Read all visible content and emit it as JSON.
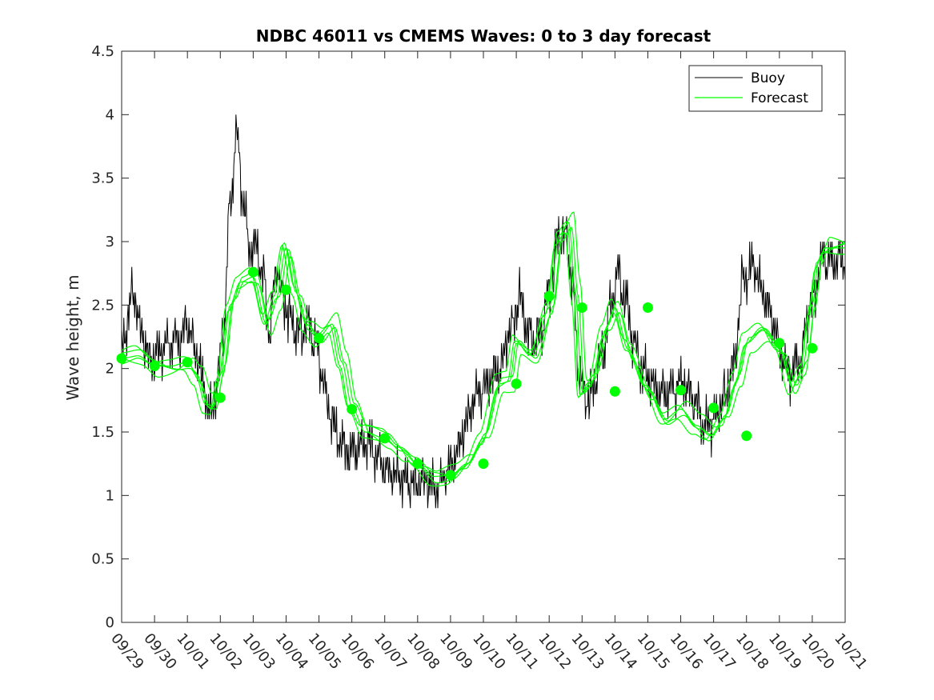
{
  "chart_data": {
    "type": "line",
    "title": "NDBC 46011 vs CMEMS Waves: 0 to 3 day forecast",
    "xlabel": "",
    "ylabel": "Wave height, m",
    "xlim": [
      0,
      22
    ],
    "ylim": [
      0,
      4.5
    ],
    "yticks": [
      0,
      0.5,
      1,
      1.5,
      2,
      2.5,
      3,
      3.5,
      4,
      4.5
    ],
    "ytick_labels": [
      "0",
      "0.5",
      "1",
      "1.5",
      "2",
      "2.5",
      "3",
      "3.5",
      "4",
      "4.5"
    ],
    "xtick_labels": [
      "09/29",
      "09/30",
      "10/01",
      "10/02",
      "10/03",
      "10/04",
      "10/05",
      "10/06",
      "10/07",
      "10/08",
      "10/09",
      "10/10",
      "10/11",
      "10/12",
      "10/13",
      "10/14",
      "10/15",
      "10/16",
      "10/17",
      "10/18",
      "10/19",
      "10/20",
      "10/21"
    ],
    "grid": false,
    "legend_position": "top-right",
    "colors": {
      "buoy": "#000000",
      "forecast": "#00ff00",
      "axis": "#262626"
    },
    "buoy_series": {
      "name": "Buoy",
      "anchors": [
        [
          0,
          2.1
        ],
        [
          0.15,
          2.35
        ],
        [
          0.35,
          2.6
        ],
        [
          0.6,
          2.3
        ],
        [
          0.9,
          2.05
        ],
        [
          1.2,
          2.15
        ],
        [
          1.5,
          2.2
        ],
        [
          1.8,
          2.25
        ],
        [
          2.0,
          2.35
        ],
        [
          2.3,
          2.1
        ],
        [
          2.5,
          1.85
        ],
        [
          2.7,
          1.65
        ],
        [
          2.9,
          1.85
        ],
        [
          3.1,
          2.3
        ],
        [
          3.3,
          3.3
        ],
        [
          3.5,
          3.85
        ],
        [
          3.7,
          3.3
        ],
        [
          3.9,
          2.95
        ],
        [
          4.1,
          2.95
        ],
        [
          4.3,
          2.7
        ],
        [
          4.5,
          2.3
        ],
        [
          4.7,
          2.8
        ],
        [
          4.9,
          2.55
        ],
        [
          5.1,
          2.4
        ],
        [
          5.3,
          2.3
        ],
        [
          5.5,
          2.3
        ],
        [
          5.7,
          2.35
        ],
        [
          5.9,
          2.2
        ],
        [
          6.1,
          1.95
        ],
        [
          6.3,
          1.65
        ],
        [
          6.6,
          1.45
        ],
        [
          6.9,
          1.35
        ],
        [
          7.2,
          1.4
        ],
        [
          7.5,
          1.4
        ],
        [
          7.8,
          1.3
        ],
        [
          8.1,
          1.2
        ],
        [
          8.4,
          1.15
        ],
        [
          8.7,
          1.12
        ],
        [
          9.0,
          1.1
        ],
        [
          9.3,
          1.12
        ],
        [
          9.6,
          1.05
        ],
        [
          9.9,
          1.2
        ],
        [
          10.2,
          1.35
        ],
        [
          10.5,
          1.6
        ],
        [
          10.8,
          1.8
        ],
        [
          11.2,
          1.9
        ],
        [
          11.5,
          2.0
        ],
        [
          11.8,
          2.3
        ],
        [
          12.1,
          2.55
        ],
        [
          12.4,
          2.25
        ],
        [
          12.7,
          2.25
        ],
        [
          13.0,
          2.6
        ],
        [
          13.3,
          3.05
        ],
        [
          13.5,
          3.05
        ],
        [
          13.7,
          2.7
        ],
        [
          13.9,
          2.0
        ],
        [
          14.1,
          1.75
        ],
        [
          14.3,
          1.8
        ],
        [
          14.6,
          2.1
        ],
        [
          14.9,
          2.5
        ],
        [
          15.1,
          2.75
        ],
        [
          15.3,
          2.55
        ],
        [
          15.6,
          2.2
        ],
        [
          15.9,
          1.95
        ],
        [
          16.2,
          1.85
        ],
        [
          16.5,
          1.8
        ],
        [
          16.8,
          1.85
        ],
        [
          17.1,
          1.9
        ],
        [
          17.4,
          1.75
        ],
        [
          17.7,
          1.55
        ],
        [
          18.0,
          1.6
        ],
        [
          18.3,
          1.75
        ],
        [
          18.6,
          2.0
        ],
        [
          18.9,
          2.7
        ],
        [
          19.2,
          2.8
        ],
        [
          19.5,
          2.6
        ],
        [
          19.8,
          2.4
        ],
        [
          20.0,
          2.15
        ],
        [
          20.3,
          1.95
        ],
        [
          20.6,
          2.05
        ],
        [
          21.0,
          2.55
        ],
        [
          21.3,
          2.85
        ]
      ],
      "noise_amplitude": 0.22
    },
    "forecast_series": {
      "name": "Forecast",
      "base": [
        [
          0,
          2.08
        ],
        [
          0.5,
          2.1
        ],
        [
          1.0,
          2.02
        ],
        [
          1.5,
          2.02
        ],
        [
          2.0,
          2.05
        ],
        [
          2.3,
          1.95
        ],
        [
          2.6,
          1.72
        ],
        [
          2.8,
          1.7
        ],
        [
          3.0,
          1.95
        ],
        [
          3.3,
          2.5
        ],
        [
          3.6,
          2.68
        ],
        [
          4.0,
          2.72
        ],
        [
          4.4,
          2.35
        ],
        [
          4.7,
          2.55
        ],
        [
          5.0,
          2.95
        ],
        [
          5.3,
          2.6
        ],
        [
          5.6,
          2.35
        ],
        [
          6.0,
          2.25
        ],
        [
          6.4,
          2.35
        ],
        [
          6.7,
          2.05
        ],
        [
          7.0,
          1.7
        ],
        [
          7.4,
          1.5
        ],
        [
          8.0,
          1.45
        ],
        [
          8.5,
          1.35
        ],
        [
          9.0,
          1.25
        ],
        [
          9.5,
          1.15
        ],
        [
          10.0,
          1.16
        ],
        [
          10.5,
          1.25
        ],
        [
          11.0,
          1.45
        ],
        [
          11.5,
          1.88
        ],
        [
          11.8,
          1.9
        ],
        [
          12.0,
          2.2
        ],
        [
          12.5,
          2.1
        ],
        [
          13.0,
          2.48
        ],
        [
          13.3,
          3.05
        ],
        [
          13.6,
          3.15
        ],
        [
          13.8,
          2.6
        ],
        [
          14.0,
          1.82
        ],
        [
          14.3,
          1.9
        ],
        [
          14.7,
          2.3
        ],
        [
          15.0,
          2.48
        ],
        [
          15.4,
          2.15
        ],
        [
          16.0,
          1.83
        ],
        [
          16.5,
          1.6
        ],
        [
          17.0,
          1.68
        ],
        [
          17.5,
          1.55
        ],
        [
          17.9,
          1.47
        ],
        [
          18.3,
          1.6
        ],
        [
          18.7,
          1.9
        ],
        [
          19.0,
          2.2
        ],
        [
          19.5,
          2.3
        ],
        [
          20.0,
          2.16
        ],
        [
          20.4,
          1.85
        ],
        [
          20.7,
          2.0
        ],
        [
          21.0,
          2.5
        ],
        [
          21.2,
          2.85
        ],
        [
          21.4,
          2.95
        ]
      ],
      "variant_offsets": [
        0.0,
        0.05,
        -0.05,
        0.09,
        -0.08
      ],
      "variant_shifts": [
        0.0,
        0.08,
        -0.06,
        0.14,
        -0.12
      ]
    },
    "forecast_markers": [
      [
        0,
        2.08
      ],
      [
        1,
        2.02
      ],
      [
        2,
        2.05
      ],
      [
        3,
        1.77
      ],
      [
        4,
        2.76
      ],
      [
        5,
        2.62
      ],
      [
        6,
        2.24
      ],
      [
        7,
        1.68
      ],
      [
        8,
        1.45
      ],
      [
        9,
        1.25
      ],
      [
        10,
        1.16
      ],
      [
        11,
        1.25
      ],
      [
        12,
        1.88
      ],
      [
        13,
        2.57
      ],
      [
        14,
        2.48
      ],
      [
        15,
        1.82
      ],
      [
        16,
        2.48
      ],
      [
        17,
        1.83
      ],
      [
        18,
        1.69
      ],
      [
        19,
        1.47
      ],
      [
        20,
        2.2
      ],
      [
        21,
        2.16
      ]
    ]
  }
}
